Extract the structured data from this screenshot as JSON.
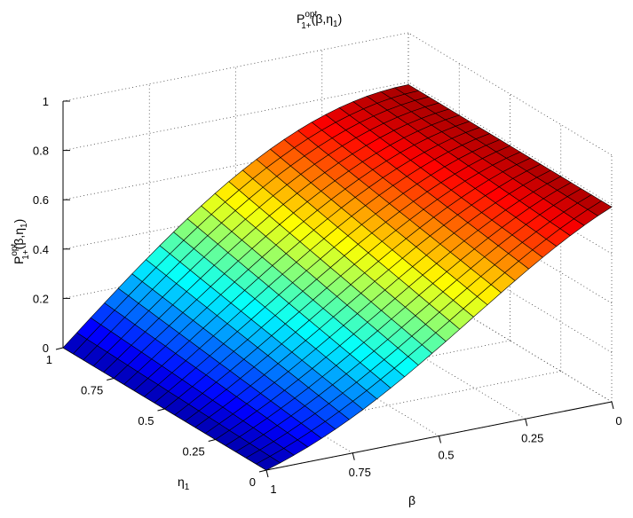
{
  "chart_data": {
    "type": "surface",
    "title": {
      "base": "P",
      "sup": "opt",
      "sub": "1+",
      "args": "(β,η",
      "args_sub": "1",
      "close": ")"
    },
    "zlabel": {
      "base": "P",
      "sup": "opt",
      "sub": "1+",
      "args": "(β,η",
      "args_sub": "1",
      "close": ")"
    },
    "xlabel": "β",
    "ylabel": {
      "base": "η",
      "sub": "1"
    },
    "x_ticks": [
      "0",
      "0.25",
      "0.5",
      "0.75",
      "1"
    ],
    "y_ticks": [
      "0",
      "0.25",
      "0.5",
      "0.75",
      "1"
    ],
    "z_ticks": [
      "0",
      "0.2",
      "0.4",
      "0.6",
      "0.8",
      "1"
    ],
    "xlim": [
      0,
      1
    ],
    "ylim": [
      0,
      1
    ],
    "zlim": [
      0,
      1
    ],
    "grid": true,
    "colormap": "jet",
    "mesh": {
      "nx": 26,
      "ny": 21
    },
    "corner_values": [
      {
        "beta": 0,
        "eta1": 0,
        "p": 0.79
      },
      {
        "beta": 0,
        "eta1": 1,
        "p": 0.79
      },
      {
        "beta": 1,
        "eta1": 0,
        "p": 0.0
      },
      {
        "beta": 1,
        "eta1": 1,
        "p": 0.0
      },
      {
        "beta": 0.5,
        "eta1": 0,
        "p": 0.25
      },
      {
        "beta": 0.5,
        "eta1": 1,
        "p": 0.55
      }
    ]
  }
}
